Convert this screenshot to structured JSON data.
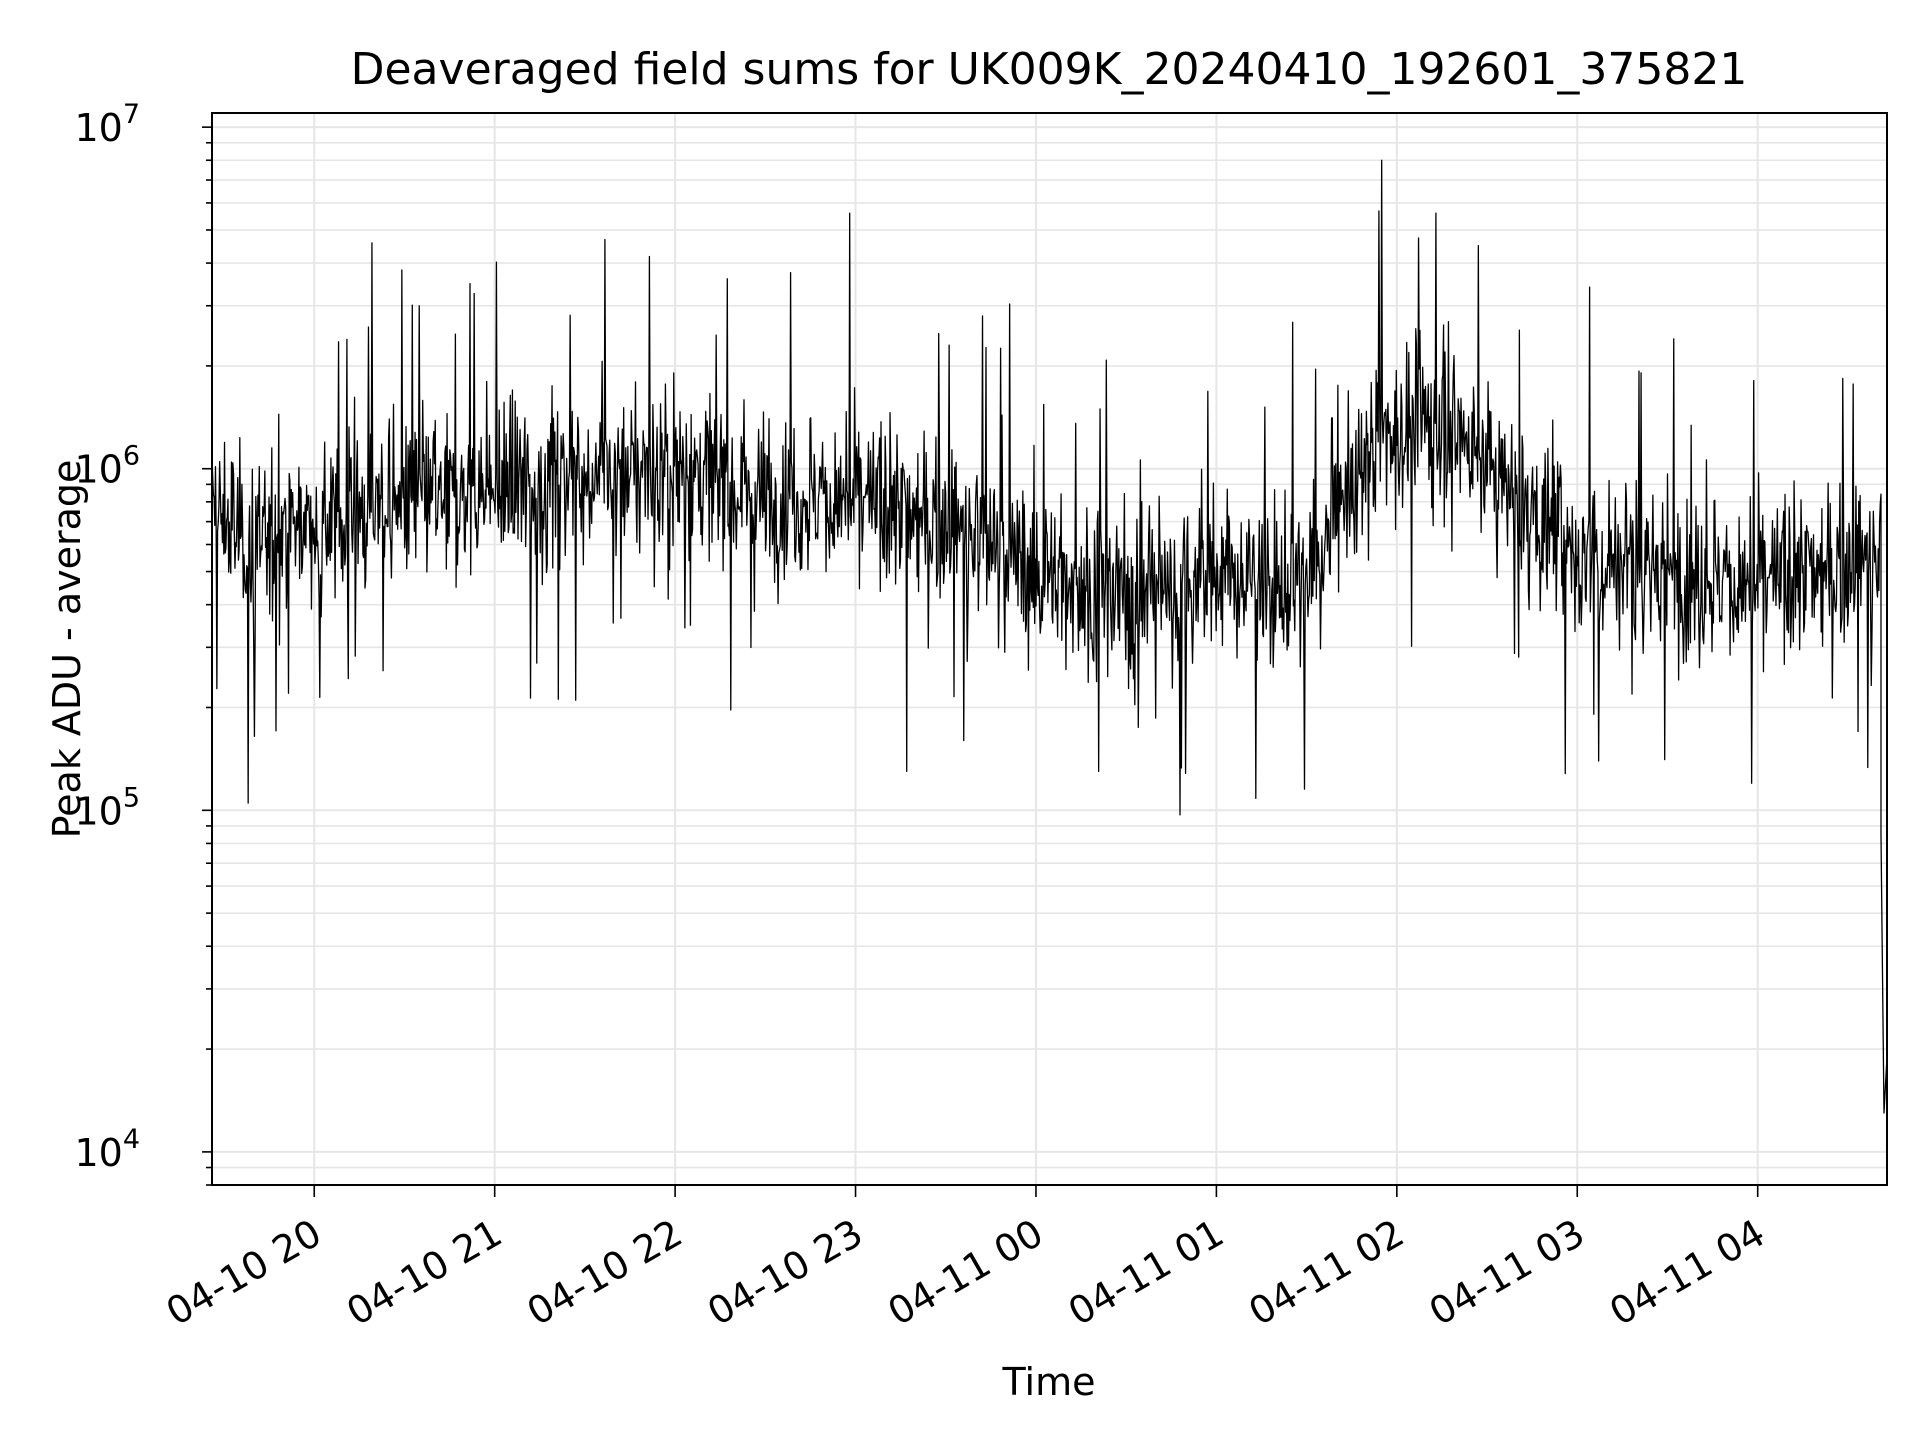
{
  "chart_data": {
    "type": "line",
    "title": "Deaveraged field sums for UK009K_20240410_192601_375821",
    "xlabel": "Time",
    "ylabel": "Peak ADU - average",
    "yscale": "log",
    "ylim": [
      8000,
      11000000
    ],
    "xlim": [
      "2024-04-10 19:26",
      "2024-04-11 04:43"
    ],
    "grid": true,
    "line_color": "#000000",
    "grid_color": "#e6e6e6",
    "x_ticks": [
      {
        "t": "2024-04-10 20:00",
        "label": "04-10 20"
      },
      {
        "t": "2024-04-10 21:00",
        "label": "04-10 21"
      },
      {
        "t": "2024-04-10 22:00",
        "label": "04-10 22"
      },
      {
        "t": "2024-04-10 23:00",
        "label": "04-10 23"
      },
      {
        "t": "2024-04-11 00:00",
        "label": "04-11 00"
      },
      {
        "t": "2024-04-11 01:00",
        "label": "04-11 01"
      },
      {
        "t": "2024-04-11 02:00",
        "label": "04-11 02"
      },
      {
        "t": "2024-04-11 03:00",
        "label": "04-11 03"
      },
      {
        "t": "2024-04-11 04:00",
        "label": "04-11 04"
      }
    ],
    "y_ticks": [
      {
        "value": 10000,
        "base": "10",
        "exp": "4"
      },
      {
        "value": 100000,
        "base": "10",
        "exp": "5"
      },
      {
        "value": 1000000,
        "base": "10",
        "exp": "6"
      },
      {
        "value": 10000000,
        "base": "10",
        "exp": "7"
      }
    ],
    "series": [
      {
        "baseline": [
          [
            "2024-04-10 19:26",
            750000
          ],
          [
            "2024-04-10 19:40",
            600000
          ],
          [
            "2024-04-10 20:00",
            700000
          ],
          [
            "2024-04-10 20:30",
            800000
          ],
          [
            "2024-04-10 21:00",
            850000
          ],
          [
            "2024-04-10 21:30",
            950000
          ],
          [
            "2024-04-10 22:00",
            1000000
          ],
          [
            "2024-04-10 22:30",
            850000
          ],
          [
            "2024-04-10 23:00",
            800000
          ],
          [
            "2024-04-10 23:30",
            700000
          ],
          [
            "2024-04-11 00:00",
            500000
          ],
          [
            "2024-04-11 00:30",
            420000
          ],
          [
            "2024-04-11 01:00",
            480000
          ],
          [
            "2024-04-11 01:30",
            450000
          ],
          [
            "2024-04-11 01:55",
            1300000
          ],
          [
            "2024-04-11 02:20",
            1300000
          ],
          [
            "2024-04-11 02:40",
            800000
          ],
          [
            "2024-04-11 03:00",
            550000
          ],
          [
            "2024-04-11 03:30",
            500000
          ],
          [
            "2024-04-11 04:00",
            450000
          ],
          [
            "2024-04-11 04:38",
            550000
          ]
        ],
        "spikes": [
          [
            "2024-04-10 19:38",
            105000
          ],
          [
            "2024-04-10 20:18",
            2600000
          ],
          [
            "2024-04-10 20:35",
            3000000
          ],
          [
            "2024-04-10 21:27",
            210000
          ],
          [
            "2024-04-10 22:58",
            5600000
          ],
          [
            "2024-04-10 23:17",
            130000
          ],
          [
            "2024-04-11 00:48",
            97000
          ],
          [
            "2024-04-11 01:55",
            8000000
          ],
          [
            "2024-04-11 02:13",
            5600000
          ],
          [
            "2024-04-11 02:27",
            4500000
          ],
          [
            "2024-04-11 03:04",
            3400000
          ],
          [
            "2024-04-11 03:32",
            2400000
          ],
          [
            "2024-04-11 03:58",
            120000
          ]
        ],
        "final_points": [
          [
            "2024-04-11 04:41",
            85000
          ],
          [
            "2024-04-11 04:42",
            13000
          ],
          [
            "2024-04-11 04:43",
            19000
          ]
        ]
      }
    ]
  }
}
